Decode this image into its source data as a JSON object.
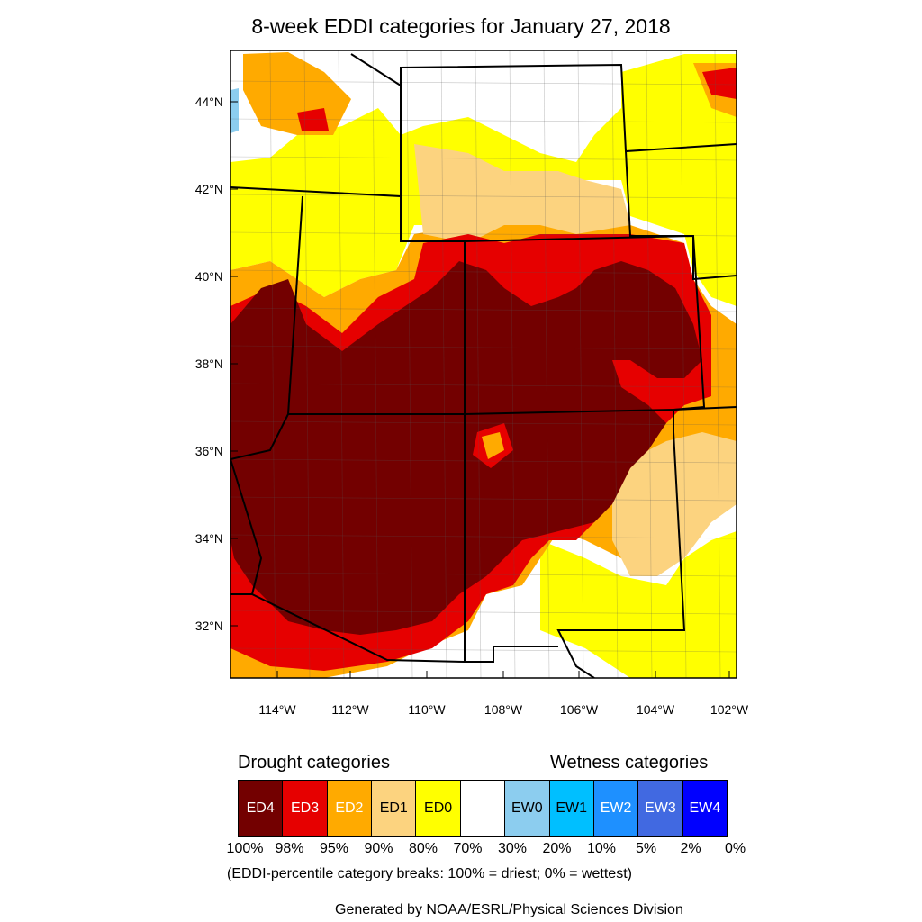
{
  "title": "8-week EDDI categories for January 27, 2018",
  "map": {
    "lat_labels": [
      "44°N",
      "42°N",
      "40°N",
      "38°N",
      "36°N",
      "34°N",
      "32°N"
    ],
    "lon_labels": [
      "114°W",
      "112°W",
      "110°W",
      "108°W",
      "106°W",
      "104°W",
      "102°W"
    ],
    "colors": {
      "ED4": "#730000",
      "ED3": "#e60000",
      "ED2": "#ffaa00",
      "ED1": "#fcd37f",
      "ED0": "#ffff00",
      "EW0": "#8ccdef",
      "state_line": "#000000",
      "county_line": "#555555"
    }
  },
  "legend": {
    "drought_heading": "Drought categories",
    "wetness_heading": "Wetness categories",
    "categories": [
      {
        "label": "ED4",
        "color": "#730000",
        "text_color": "#ffffff"
      },
      {
        "label": "ED3",
        "color": "#e60000",
        "text_color": "#ffffff"
      },
      {
        "label": "ED2",
        "color": "#ffaa00",
        "text_color": "#ffffff"
      },
      {
        "label": "ED1",
        "color": "#fcd37f",
        "text_color": "#000000"
      },
      {
        "label": "ED0",
        "color": "#ffff00",
        "text_color": "#000000"
      },
      {
        "label": "",
        "color": "#ffffff",
        "text_color": "#000000"
      },
      {
        "label": "EW0",
        "color": "#8ccdef",
        "text_color": "#000000"
      },
      {
        "label": "EW1",
        "color": "#00bfff",
        "text_color": "#000000"
      },
      {
        "label": "EW2",
        "color": "#1e90ff",
        "text_color": "#ffffff"
      },
      {
        "label": "EW3",
        "color": "#4169e1",
        "text_color": "#ffffff"
      },
      {
        "label": "EW4",
        "color": "#0000ff",
        "text_color": "#ffffff"
      }
    ],
    "breaks": [
      "100%",
      "98%",
      "95%",
      "90%",
      "80%",
      "70%",
      "30%",
      "20%",
      "10%",
      "5%",
      "2%",
      "0%"
    ],
    "note": "(EDDI-percentile category breaks: 100% = driest; 0% = wettest)"
  },
  "credit": "Generated by NOAA/ESRL/Physical Sciences Division"
}
